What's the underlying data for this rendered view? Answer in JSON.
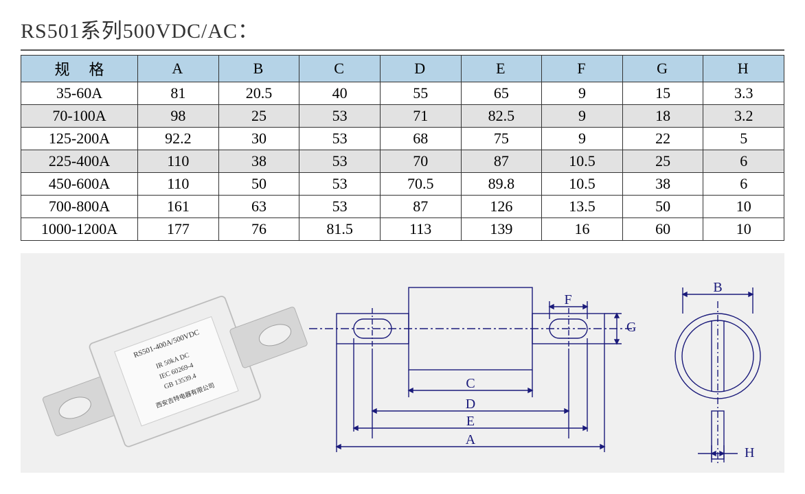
{
  "title": "RS501系列500VDC/AC：",
  "table": {
    "header_bg": "#b5d3e7",
    "alt_bg": "#e2e2e2",
    "border_color": "#333333",
    "columns": [
      "规格",
      "A",
      "B",
      "C",
      "D",
      "E",
      "F",
      "G",
      "H"
    ],
    "rows": [
      [
        "35-60A",
        "81",
        "20.5",
        "40",
        "55",
        "65",
        "9",
        "15",
        "3.3"
      ],
      [
        "70-100A",
        "98",
        "25",
        "53",
        "71",
        "82.5",
        "9",
        "18",
        "3.2"
      ],
      [
        "125-200A",
        "92.2",
        "30",
        "53",
        "68",
        "75",
        "9",
        "22",
        "5"
      ],
      [
        "225-400A",
        "110",
        "38",
        "53",
        "70",
        "87",
        "10.5",
        "25",
        "6"
      ],
      [
        "450-600A",
        "110",
        "50",
        "53",
        "70.5",
        "89.8",
        "10.5",
        "38",
        "6"
      ],
      [
        "700-800A",
        "161",
        "63",
        "53",
        "87",
        "126",
        "13.5",
        "50",
        "10"
      ],
      [
        "1000-1200A",
        "177",
        "76",
        "81.5",
        "113",
        "139",
        "16",
        "60",
        "10"
      ]
    ],
    "alt_row_indices": [
      1,
      3
    ]
  },
  "diagram": {
    "line_color": "#1a1a7a",
    "bg": "#f0f0f0",
    "front": {
      "labels": [
        "A",
        "C",
        "D",
        "E",
        "F",
        "G"
      ]
    },
    "side": {
      "labels": [
        "B",
        "H"
      ]
    },
    "photo": {
      "label_lines": [
        "RS501-400A/500VDC",
        "IR 50kA  DC",
        "IEC  60269-4",
        "GB  13539.4",
        "西安吉特电器有限公司"
      ]
    }
  }
}
